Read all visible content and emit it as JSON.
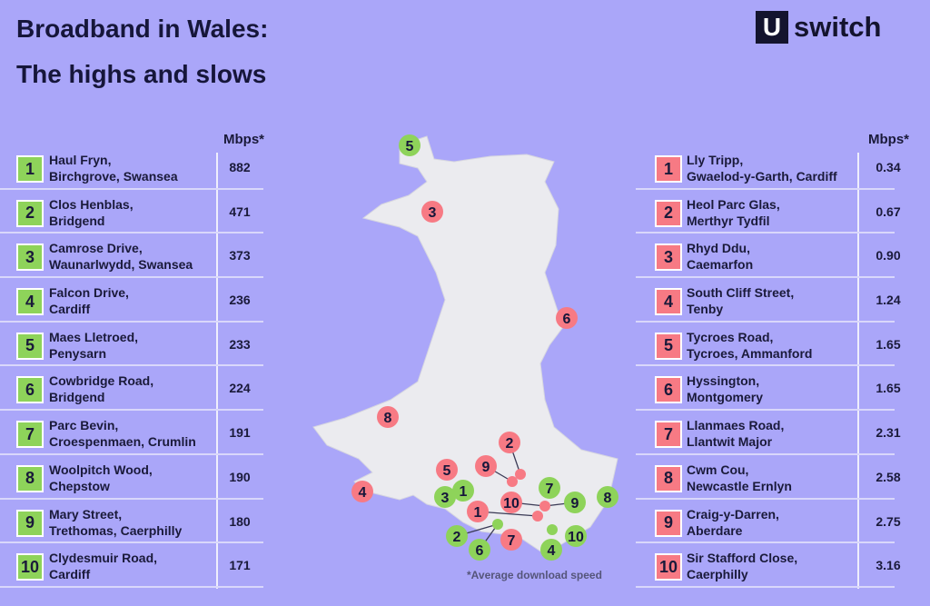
{
  "title_line1": "Broadband in Wales:",
  "title_line2": "The highs and slows",
  "logo": {
    "mark": "U",
    "text": "switch"
  },
  "colors": {
    "background": "#aaa6f9",
    "fast": "#8ed35a",
    "slow": "#f77a84",
    "land": "#ebebef"
  },
  "fastest": {
    "unit": "Mbps*",
    "rows": [
      {
        "rank": "1",
        "line1": "Haul Fryn,",
        "line2": "Birchgrove, Swansea",
        "speed": "882"
      },
      {
        "rank": "2",
        "line1": "Clos Henblas,",
        "line2": "Bridgend",
        "speed": "471"
      },
      {
        "rank": "3",
        "line1": "Camrose Drive,",
        "line2": "Waunarlwydd, Swansea",
        "speed": "373"
      },
      {
        "rank": "4",
        "line1": "Falcon Drive,",
        "line2": "Cardiff",
        "speed": "236"
      },
      {
        "rank": "5",
        "line1": "Maes Lletroed,",
        "line2": "Penysarn",
        "speed": "233"
      },
      {
        "rank": "6",
        "line1": "Cowbridge Road,",
        "line2": "Bridgend",
        "speed": "224"
      },
      {
        "rank": "7",
        "line1": "Parc Bevin,",
        "line2": "Croespenmaen, Crumlin",
        "speed": "191"
      },
      {
        "rank": "8",
        "line1": "Woolpitch Wood,",
        "line2": "Chepstow",
        "speed": "190"
      },
      {
        "rank": "9",
        "line1": "Mary Street,",
        "line2": "Trethomas, Caerphilly",
        "speed": "180"
      },
      {
        "rank": "10",
        "line1": "Clydesmuir Road,",
        "line2": "Cardiff",
        "speed": "171"
      }
    ]
  },
  "slowest": {
    "unit": "Mbps*",
    "rows": [
      {
        "rank": "1",
        "line1": "Lly Tripp,",
        "line2": "Gwaelod-y-Garth, Cardiff",
        "speed": "0.34"
      },
      {
        "rank": "2",
        "line1": "Heol Parc Glas,",
        "line2": "Merthyr Tydfil",
        "speed": "0.67"
      },
      {
        "rank": "3",
        "line1": "Rhyd Ddu,",
        "line2": "Caemarfon",
        "speed": "0.90"
      },
      {
        "rank": "4",
        "line1": "South Cliff Street,",
        "line2": "Tenby",
        "speed": "1.24"
      },
      {
        "rank": "5",
        "line1": "Tycroes Road,",
        "line2": "Tycroes, Ammanford",
        "speed": "1.65"
      },
      {
        "rank": "6",
        "line1": "Hyssington,",
        "line2": "Montgomery",
        "speed": "1.65"
      },
      {
        "rank": "7",
        "line1": "Llanmaes Road,",
        "line2": "Llantwit Major",
        "speed": "2.31"
      },
      {
        "rank": "8",
        "line1": "Cwm Cou,",
        "line2": "Newcastle Ernlyn",
        "speed": "2.58"
      },
      {
        "rank": "9",
        "line1": "Craig-y-Darren,",
        "line2": "Aberdare",
        "speed": "2.75"
      },
      {
        "rank": "10",
        "line1": "Sir Stafford Close,",
        "line2": "Caerphilly",
        "speed": "3.16"
      }
    ]
  },
  "footnote": "*Average download speed"
}
